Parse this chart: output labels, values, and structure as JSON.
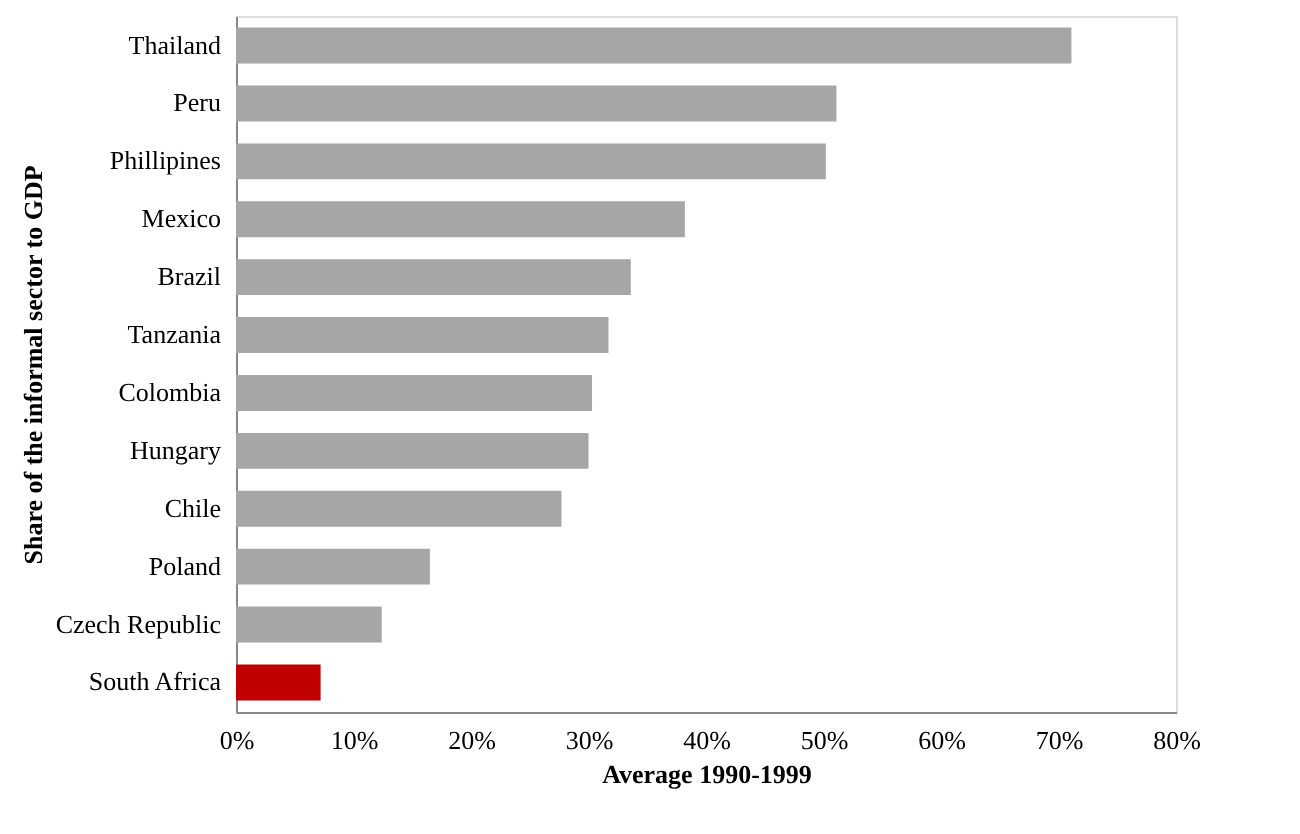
{
  "chart_data": {
    "type": "bar",
    "orientation": "horizontal",
    "xlabel": "Average 1990-1999",
    "ylabel": "Share of the informal sector to GDP",
    "categories": [
      "Thailand",
      "Peru",
      "Phillipines",
      "Mexico",
      "Brazil",
      "Tanzania",
      "Colombia",
      "Hungary",
      "Chile",
      "Poland",
      "Czech Republic",
      "South Africa"
    ],
    "values": [
      0.711,
      0.511,
      0.502,
      0.382,
      0.336,
      0.317,
      0.303,
      0.3,
      0.277,
      0.165,
      0.124,
      0.072
    ],
    "colors": [
      "#a6a6a6",
      "#a6a6a6",
      "#a6a6a6",
      "#a6a6a6",
      "#a6a6a6",
      "#a6a6a6",
      "#a6a6a6",
      "#a6a6a6",
      "#a6a6a6",
      "#a6a6a6",
      "#a6a6a6",
      "#c00000"
    ],
    "xlim": [
      0,
      0.8
    ],
    "xticks": [
      {
        "value": 0,
        "label": "0%"
      },
      {
        "value": 0.1,
        "label": "10%"
      },
      {
        "value": 0.2,
        "label": "20%"
      },
      {
        "value": 0.3,
        "label": "30%"
      },
      {
        "value": 0.4,
        "label": "40%"
      },
      {
        "value": 0.5,
        "label": "50%"
      },
      {
        "value": 0.6,
        "label": "60%"
      },
      {
        "value": 0.7,
        "label": "70%"
      },
      {
        "value": 0.8,
        "label": "80%"
      }
    ],
    "grid": false
  }
}
